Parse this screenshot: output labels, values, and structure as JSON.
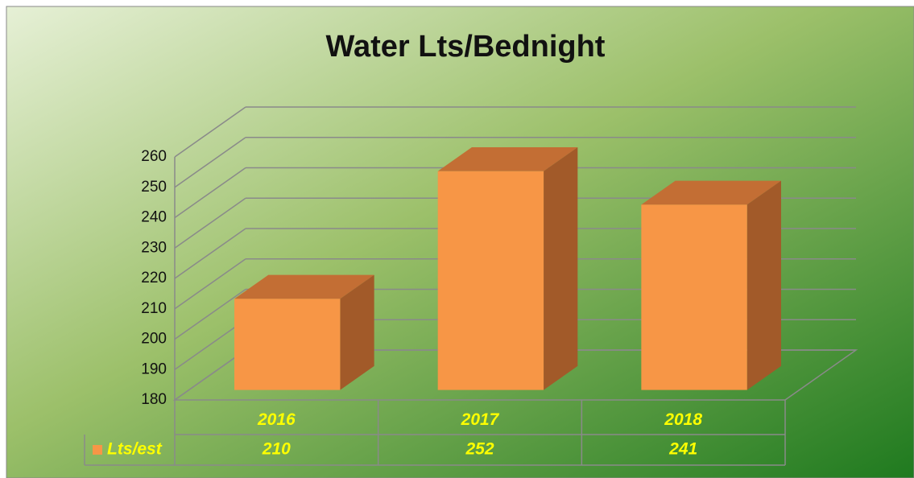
{
  "chart_data": {
    "type": "bar3d",
    "title": "Water Lts/Bednight",
    "categories": [
      "2016",
      "2017",
      "2018"
    ],
    "series": [
      {
        "name": "Lts/est",
        "color": "#f79646",
        "values": [
          210,
          252,
          241
        ]
      }
    ],
    "ylim": [
      180,
      260
    ],
    "yticks": [
      180,
      190,
      200,
      210,
      220,
      230,
      240,
      250,
      260
    ],
    "grid": true
  }
}
